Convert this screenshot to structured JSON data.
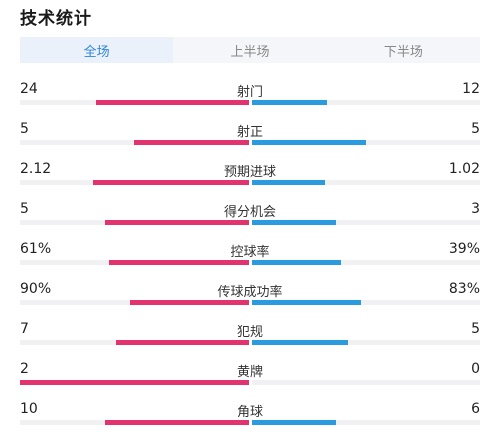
{
  "title": "技术统计",
  "tabs": [
    {
      "label": "全场",
      "active": true
    },
    {
      "label": "上半场",
      "active": false
    },
    {
      "label": "下半场",
      "active": false
    }
  ],
  "colors": {
    "home": "#e2336f",
    "away": "#2b9be0",
    "active_tab": "#2f86d8"
  },
  "stats": [
    {
      "label": "射门",
      "home": "24",
      "away": "12",
      "home_share": 0.67,
      "away_share": 0.33
    },
    {
      "label": "射正",
      "home": "5",
      "away": "5",
      "home_share": 0.5,
      "away_share": 0.5
    },
    {
      "label": "预期进球",
      "home": "2.12",
      "away": "1.02",
      "home_share": 0.68,
      "away_share": 0.32
    },
    {
      "label": "得分机会",
      "home": "5",
      "away": "3",
      "home_share": 0.63,
      "away_share": 0.37
    },
    {
      "label": "控球率",
      "home": "61%",
      "away": "39%",
      "home_share": 0.61,
      "away_share": 0.39
    },
    {
      "label": "传球成功率",
      "home": "90%",
      "away": "83%",
      "home_share": 0.52,
      "away_share": 0.48
    },
    {
      "label": "犯规",
      "home": "7",
      "away": "5",
      "home_share": 0.58,
      "away_share": 0.42
    },
    {
      "label": "黄牌",
      "home": "2",
      "away": "0",
      "home_share": 1.0,
      "away_share": 0.0
    },
    {
      "label": "角球",
      "home": "10",
      "away": "6",
      "home_share": 0.63,
      "away_share": 0.37
    }
  ]
}
